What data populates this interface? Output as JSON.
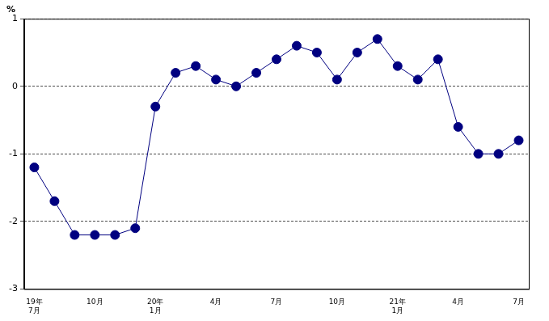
{
  "chart_data": {
    "type": "line",
    "ylabel": "%",
    "categories": [
      "19年\n7月",
      null,
      null,
      "10月",
      null,
      null,
      "20年\n1月",
      null,
      null,
      "4月",
      null,
      null,
      "7月",
      null,
      null,
      "10月",
      null,
      null,
      "21年\n1月",
      null,
      null,
      "4月",
      null,
      null,
      "7月"
    ],
    "values": [
      -1.2,
      -1.7,
      -2.2,
      -2.2,
      -2.2,
      -2.1,
      -0.3,
      0.2,
      0.3,
      0.1,
      0.0,
      0.2,
      0.4,
      0.6,
      0.5,
      0.1,
      0.5,
      0.7,
      0.3,
      0.1,
      0.4,
      -0.6,
      -1.0,
      -1.0,
      -0.8
    ],
    "color": "#000080",
    "marker": "circle",
    "line_style": "solid",
    "ylim": [
      -3,
      1
    ],
    "yticks": [
      -3,
      -2,
      -1,
      0,
      1
    ],
    "grid": true
  }
}
